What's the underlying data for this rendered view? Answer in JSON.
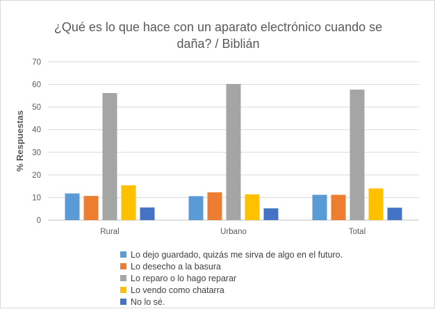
{
  "chart_data": {
    "type": "bar",
    "title": "¿Qué es lo que hace con un aparato electrónico cuando se daña? / Biblián",
    "title_lines": [
      "¿Qué es lo que hace con un aparato electrónico cuando se",
      "daña? / Biblián"
    ],
    "xlabel": "",
    "ylabel": "% Respuestas",
    "ylim": [
      0,
      70
    ],
    "yticks": [
      0,
      10,
      20,
      30,
      40,
      50,
      60,
      70
    ],
    "grid": true,
    "legend_position": "bottom",
    "categories": [
      "Rural",
      "Urbano",
      "Total"
    ],
    "series": [
      {
        "name": "Lo dejo guardado, quizás me sirva de algo en el futuro.",
        "color": "#5B9BD5",
        "values": [
          11.8,
          10.6,
          11.2
        ]
      },
      {
        "name": "Lo desecho a la basura",
        "color": "#ED7D31",
        "values": [
          10.7,
          12.3,
          11.2
        ]
      },
      {
        "name": "Lo reparo o lo hago reparar",
        "color": "#A5A5A5",
        "values": [
          56.2,
          60.2,
          57.7
        ]
      },
      {
        "name": "Lo vendo como chatarra",
        "color": "#FFC000",
        "values": [
          15.4,
          11.4,
          14.0
        ]
      },
      {
        "name": "No lo sé.",
        "color": "#4472C4",
        "values": [
          5.6,
          5.2,
          5.5
        ]
      }
    ]
  }
}
